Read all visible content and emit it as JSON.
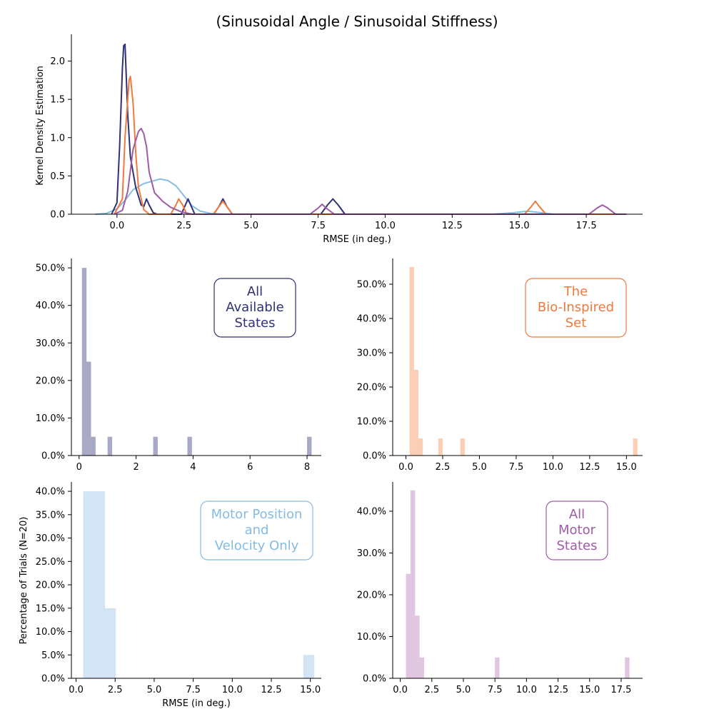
{
  "figure": {
    "title": "(Sinusoidal Angle / Sinusoidal Stiffness)"
  },
  "chart_data": [
    {
      "type": "line",
      "panel": "kde",
      "title": "(Sinusoidal Angle / Sinusoidal Stiffness)",
      "xlabel": "RMSE (in deg.)",
      "ylabel": "Kernel Density Estimation",
      "xlim": [
        -1.7,
        19.6
      ],
      "ylim": [
        0,
        2.35
      ],
      "xticks": [
        "0.0",
        "2.5",
        "5.0",
        "7.5",
        "10.0",
        "12.5",
        "15.0",
        "17.5"
      ],
      "yticks": [
        "0.0",
        "0.5",
        "1.0",
        "1.5",
        "2.0"
      ],
      "series": [
        {
          "color": "#84bce3",
          "x": [
            -0.8,
            -0.4,
            0,
            0.3,
            0.6,
            1,
            1.3,
            1.6,
            1.9,
            2.2,
            2.5,
            2.8,
            3.1,
            3.5,
            4,
            5,
            8,
            12,
            14,
            14.8,
            15.3,
            15.8,
            16.3,
            17
          ],
          "y": [
            0,
            0.01,
            0.07,
            0.18,
            0.32,
            0.4,
            0.43,
            0.46,
            0.44,
            0.37,
            0.24,
            0.11,
            0.04,
            0.01,
            0,
            0,
            0,
            0,
            0,
            0.02,
            0.04,
            0.02,
            0,
            0
          ]
        },
        {
          "color": "#2e3175",
          "x": [
            -0.2,
            0,
            0.1,
            0.2,
            0.25,
            0.3,
            0.4,
            0.5,
            0.7,
            0.9,
            1.0,
            1.1,
            1.2,
            1.35,
            1.5,
            2.4,
            2.55,
            2.65,
            2.75,
            2.9,
            3.6,
            3.8,
            3.95,
            4.1,
            4.3,
            7.6,
            7.85,
            8.05,
            8.25,
            8.5,
            19
          ],
          "y": [
            0,
            0.15,
            0.9,
            1.9,
            2.2,
            2.22,
            1.3,
            0.75,
            0.35,
            0.12,
            0.1,
            0.2,
            0.12,
            0.02,
            0,
            0,
            0.12,
            0.2,
            0.12,
            0,
            0,
            0.1,
            0.2,
            0.1,
            0,
            0,
            0.12,
            0.2,
            0.12,
            0,
            0
          ]
        },
        {
          "color": "#ef7a3d",
          "x": [
            -0.1,
            0.2,
            0.3,
            0.45,
            0.5,
            0.6,
            0.7,
            0.8,
            1.0,
            1.2,
            1.5,
            2.0,
            2.2,
            2.3,
            2.45,
            2.6,
            3.6,
            3.8,
            3.95,
            4.1,
            4.3,
            15.2,
            15.45,
            15.6,
            15.75,
            16,
            19
          ],
          "y": [
            0,
            0.2,
            1.0,
            1.75,
            1.8,
            1.45,
            0.8,
            0.35,
            0.06,
            0,
            0,
            0,
            0.12,
            0.2,
            0.12,
            0,
            0,
            0.1,
            0.17,
            0.1,
            0,
            0,
            0.1,
            0.17,
            0.1,
            0,
            0
          ]
        },
        {
          "color": "#a05ba7",
          "x": [
            -0.1,
            0.2,
            0.4,
            0.6,
            0.8,
            0.9,
            1.0,
            1.1,
            1.2,
            1.4,
            1.7,
            2.0,
            2.4,
            2.8,
            7.2,
            7.5,
            7.65,
            7.8,
            8.1,
            17.6,
            17.9,
            18.1,
            18.3,
            18.6,
            19
          ],
          "y": [
            0,
            0.05,
            0.3,
            0.85,
            1.08,
            1.12,
            1.05,
            0.88,
            0.55,
            0.28,
            0.17,
            0.09,
            0.03,
            0,
            0,
            0.08,
            0.13,
            0.08,
            0,
            0,
            0.08,
            0.12,
            0.08,
            0,
            0
          ]
        }
      ]
    },
    {
      "type": "bar",
      "panel": "hist-all-states",
      "legend": [
        "All",
        "Available",
        "States"
      ],
      "color": "#2e3175",
      "text_color": "#2e3175",
      "xlim": [
        -0.27,
        8.5
      ],
      "ylim": [
        0,
        0.525
      ],
      "xticks": [
        "0",
        "2",
        "4",
        "6",
        "8"
      ],
      "yticks": [
        "0.0%",
        "10.0%",
        "20.0%",
        "30.0%",
        "40.0%",
        "50.0%"
      ],
      "bin_width": 0.16,
      "bins": [
        [
          0.1,
          0.5
        ],
        [
          0.26,
          0.25
        ],
        [
          0.42,
          0.05
        ],
        [
          1.0,
          0.05
        ],
        [
          2.6,
          0.05
        ],
        [
          3.8,
          0.05
        ],
        [
          8.0,
          0.05
        ]
      ]
    },
    {
      "type": "bar",
      "panel": "hist-bio-inspired",
      "legend": [
        "The",
        "Bio-Inspired",
        "Set"
      ],
      "color": "#f89d6d",
      "text_color": "#ef7a3d",
      "xlim": [
        -0.9,
        16.1
      ],
      "ylim": [
        0,
        0.575
      ],
      "xticks": [
        "0.0",
        "2.5",
        "5.0",
        "7.5",
        "10.0",
        "12.5",
        "15.0"
      ],
      "yticks": [
        "0.0%",
        "10.0%",
        "20.0%",
        "30.0%",
        "40.0%",
        "50.0%"
      ],
      "bin_width": 0.3,
      "bins": [
        [
          0.25,
          0.55
        ],
        [
          0.55,
          0.25
        ],
        [
          0.85,
          0.05
        ],
        [
          2.2,
          0.05
        ],
        [
          3.7,
          0.05
        ],
        [
          15.45,
          0.05
        ]
      ]
    },
    {
      "type": "bar",
      "panel": "hist-motor-position-velocity",
      "legend": [
        "Motor Position",
        "and",
        "Velocity Only"
      ],
      "color": "#a7c9ec",
      "text_color": "#84bce3",
      "ylabel": "Percentage of Trials (N=20)",
      "xlabel": "RMSE (in deg.)",
      "xlim": [
        -0.3,
        15.7
      ],
      "ylim": [
        0,
        0.42
      ],
      "xticks": [
        "0.0",
        "2.5",
        "5.0",
        "7.5",
        "10.0",
        "12.5",
        "15.0"
      ],
      "yticks": [
        "0.0%",
        "5.0%",
        "10.0%",
        "15.0%",
        "20.0%",
        "25.0%",
        "30.0%",
        "35.0%",
        "40.0%"
      ],
      "bin_width": 0.7,
      "bins": [
        [
          0.45,
          0.4
        ],
        [
          1.15,
          0.4
        ],
        [
          1.85,
          0.15
        ],
        [
          14.55,
          0.05
        ]
      ]
    },
    {
      "type": "bar",
      "panel": "hist-all-motor-states",
      "legend": [
        "All",
        "Motor",
        "States"
      ],
      "color": "#c48dc3",
      "text_color": "#a05ba7",
      "xlim": [
        -0.6,
        19.2
      ],
      "ylim": [
        0,
        0.47
      ],
      "xticks": [
        "0.0",
        "2.5",
        "5.0",
        "7.5",
        "10.0",
        "12.5",
        "15.0",
        "17.5"
      ],
      "yticks": [
        "0.0%",
        "10.0%",
        "20.0%",
        "30.0%",
        "40.0%"
      ],
      "bin_width": 0.36,
      "bins": [
        [
          0.45,
          0.25
        ],
        [
          0.81,
          0.45
        ],
        [
          1.17,
          0.15
        ],
        [
          1.53,
          0.05
        ],
        [
          7.5,
          0.05
        ],
        [
          17.8,
          0.05
        ]
      ]
    }
  ]
}
